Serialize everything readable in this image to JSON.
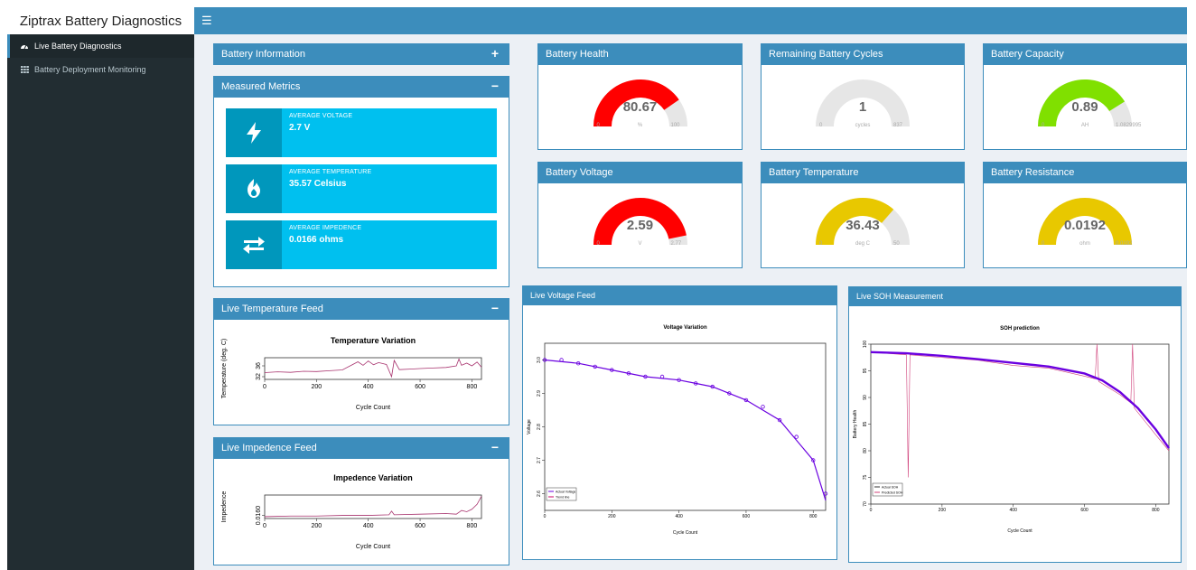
{
  "app": {
    "title": "Ziptrax Battery Diagnostics"
  },
  "colors": {
    "header": "#3c8dbc",
    "sidebar": "#222d32",
    "valuebox": "#00c0ef",
    "gauge_red": "#ff0000",
    "gauge_green": "#80e000",
    "gauge_yellow": "#e8c800",
    "gauge_bg": "#e6e6e6"
  },
  "sidebar": {
    "items": [
      {
        "label": "Live Battery Diagnostics",
        "icon": "dashboard-icon",
        "active": true
      },
      {
        "label": "Battery Deployment Monitoring",
        "icon": "grid-icon",
        "active": false
      }
    ]
  },
  "battery_info": {
    "title": "Battery Information",
    "tool": "+"
  },
  "measured_metrics": {
    "title": "Measured Metrics",
    "tool": "−",
    "boxes": [
      {
        "label": "AVERAGE VOLTAGE",
        "value": "2.7 V",
        "icon": "bolt-icon"
      },
      {
        "label": "AVERAGE TEMPERATURE",
        "value": "35.57 Celsius",
        "icon": "fire-icon"
      },
      {
        "label": "AVERAGE IMPEDENCE",
        "value": "0.0166 ohms",
        "icon": "exchange-icon"
      }
    ]
  },
  "gauges": [
    {
      "title": "Battery Health",
      "value": "80.67",
      "min": "0",
      "unit": "%",
      "max": "100",
      "fraction": 0.8067,
      "color": "#ff0000"
    },
    {
      "title": "Remaining Battery Cycles",
      "value": "1",
      "min": "0",
      "unit": "cycles",
      "max": "837",
      "fraction": 0.0012,
      "color": "#e6e6e6"
    },
    {
      "title": "Battery Capacity",
      "value": "0.89",
      "min": "0",
      "unit": "AH",
      "max": "1.0829995",
      "fraction": 0.822,
      "color": "#80e000"
    },
    {
      "title": "Battery Voltage",
      "value": "2.59",
      "min": "0",
      "unit": "V",
      "max": "2.77",
      "fraction": 0.935,
      "color": "#ff0000"
    },
    {
      "title": "Battery Temperature",
      "value": "36.43",
      "min": "0",
      "unit": "deg C",
      "max": "50",
      "fraction": 0.7286,
      "color": "#e8c800"
    },
    {
      "title": "Battery Resistance",
      "value": "0.0192",
      "min": "0",
      "unit": "ohm",
      "max": "0.0192",
      "fraction": 1.0,
      "color": "#e8c800"
    }
  ],
  "temperature_feed": {
    "title": "Live Temperature Feed",
    "tool": "−"
  },
  "impedence_feed": {
    "title": "Live Impedence Feed",
    "tool": "−"
  },
  "voltage_feed": {
    "title": "Live Voltage Feed"
  },
  "soh_feed": {
    "title": "Live SOH Measurement"
  },
  "chart_data": [
    {
      "type": "line",
      "title": "Temperature Variation",
      "xlabel": "Cycle Count",
      "ylabel": "Temperature (deg. C)",
      "xlim": [
        0,
        837
      ],
      "ylim": [
        31,
        39
      ],
      "x_ticks": [
        "0",
        "200",
        "400",
        "600",
        "800"
      ],
      "y_ticks": [
        "32",
        "36"
      ],
      "series": [
        {
          "x": [
            0,
            50,
            100,
            150,
            200,
            250,
            300,
            340,
            360,
            380,
            400,
            420,
            440,
            470,
            490,
            500,
            520,
            560,
            600,
            650,
            700,
            740,
            750,
            760,
            780,
            800,
            820,
            837
          ],
          "y": [
            33.5,
            33.8,
            33.6,
            34.0,
            33.9,
            34.2,
            34.5,
            36.5,
            37.5,
            36.2,
            37.8,
            36.4,
            37.2,
            36.5,
            32.0,
            38.0,
            34.6,
            34.8,
            35.0,
            35.2,
            35.4,
            36.0,
            38.5,
            36.2,
            37.0,
            36.0,
            37.4,
            35.5
          ]
        }
      ]
    },
    {
      "type": "line",
      "title": "Impedence Variation",
      "xlabel": "Cycle Count",
      "ylabel": "Impedence",
      "xlim": [
        0,
        837
      ],
      "ylim": [
        0.0155,
        0.0193
      ],
      "x_ticks": [
        "0",
        "200",
        "400",
        "600",
        "800"
      ],
      "y_ticks": [
        "0.0160"
      ],
      "series": [
        {
          "x": [
            0,
            100,
            200,
            300,
            400,
            480,
            490,
            500,
            600,
            700,
            740,
            760,
            780,
            800,
            820,
            837
          ],
          "y": [
            0.0158,
            0.0159,
            0.0159,
            0.016,
            0.016,
            0.0161,
            0.0167,
            0.0161,
            0.0162,
            0.0163,
            0.0162,
            0.0168,
            0.0166,
            0.017,
            0.0178,
            0.0191
          ]
        }
      ]
    },
    {
      "type": "scatter",
      "title": "Voltage Variation",
      "xlabel": "Cycle Count",
      "ylabel": "Voltage",
      "xlim": [
        0,
        837
      ],
      "ylim": [
        2.55,
        3.05
      ],
      "x_ticks": [
        "0",
        "200",
        "400",
        "600",
        "800"
      ],
      "y_ticks": [
        "2.6",
        "2.7",
        "2.8",
        "2.9",
        "3.0"
      ],
      "legend": [
        "Actual Voltage",
        "Trend line"
      ],
      "series": [
        {
          "name": "Actual Voltage",
          "x": [
            0,
            50,
            100,
            150,
            200,
            250,
            300,
            350,
            400,
            450,
            500,
            550,
            600,
            650,
            700,
            750,
            800,
            837
          ],
          "y": [
            3.0,
            3.0,
            2.99,
            2.98,
            2.97,
            2.96,
            2.95,
            2.95,
            2.94,
            2.93,
            2.92,
            2.9,
            2.88,
            2.86,
            2.82,
            2.77,
            2.7,
            2.6
          ]
        },
        {
          "name": "Trend line",
          "x": [
            0,
            100,
            200,
            300,
            400,
            500,
            600,
            700,
            800,
            837
          ],
          "y": [
            3.0,
            2.99,
            2.97,
            2.95,
            2.94,
            2.92,
            2.88,
            2.82,
            2.7,
            2.58
          ]
        }
      ]
    },
    {
      "type": "line",
      "title": "SOH prediction",
      "xlabel": "Cycle Count",
      "ylabel": "Battery Health",
      "xlim": [
        0,
        837
      ],
      "ylim": [
        70,
        100
      ],
      "x_ticks": [
        "0",
        "200",
        "400",
        "600",
        "800"
      ],
      "y_ticks": [
        "70",
        "75",
        "80",
        "85",
        "90",
        "95",
        "100"
      ],
      "legend": [
        "Actual SOH",
        "Predicted SOH"
      ],
      "series": [
        {
          "name": "Predicted SOH",
          "x": [
            0,
            100,
            200,
            300,
            400,
            500,
            600,
            650,
            700,
            750,
            800,
            837
          ],
          "y": [
            98.5,
            98.3,
            97.8,
            97.2,
            96.5,
            95.8,
            94.5,
            93.2,
            91.0,
            88.0,
            84.0,
            80.5
          ]
        },
        {
          "name": "Actual SOH",
          "x": [
            0,
            100,
            105,
            110,
            200,
            300,
            400,
            500,
            600,
            630,
            635,
            640,
            700,
            730,
            735,
            740,
            800,
            837
          ],
          "y": [
            98.5,
            98.0,
            75.0,
            98.0,
            97.5,
            97.0,
            96.0,
            95.5,
            94.0,
            93.5,
            100.0,
            93.0,
            90.5,
            89.0,
            100.0,
            88.0,
            83.0,
            80.0
          ]
        }
      ]
    }
  ]
}
